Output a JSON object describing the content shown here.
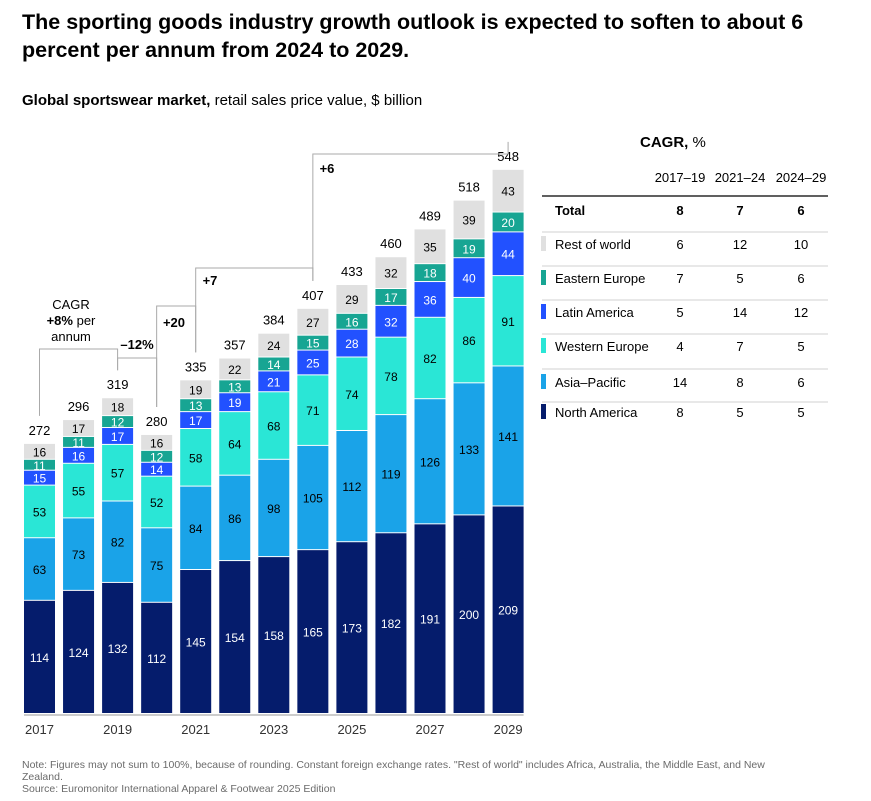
{
  "title": "The sporting goods industry growth outlook is expected to soften to about 6 percent per annum from 2024 to 2029.",
  "subtitle": {
    "bold": "Global sportswear market,",
    "rest": " retail sales price value, $ billion"
  },
  "colors": {
    "North America": "#051c6c",
    "Asia–Pacific": "#1aa3e8",
    "Western Europe": "#2ae6d6",
    "Latin America": "#2251ff",
    "Eastern Europe": "#17a593",
    "Rest of world": "#e0e0e0"
  },
  "chart_data": {
    "type": "bar",
    "stacked": true,
    "categories": [
      "2017",
      "2018",
      "2019",
      "2020",
      "2021",
      "2022",
      "2023",
      "2024",
      "2025",
      "2026",
      "2027",
      "2028",
      "2029"
    ],
    "x_tick_labels": [
      "2017",
      "2019",
      "2021",
      "2023",
      "2025",
      "2027",
      "2029"
    ],
    "totals": [
      272,
      296,
      319,
      280,
      335,
      357,
      384,
      407,
      433,
      460,
      489,
      518,
      548
    ],
    "series": [
      {
        "name": "North America",
        "values": [
          114,
          124,
          132,
          112,
          145,
          154,
          158,
          165,
          173,
          182,
          191,
          200,
          209
        ]
      },
      {
        "name": "Asia–Pacific",
        "values": [
          63,
          73,
          82,
          75,
          84,
          86,
          98,
          105,
          112,
          119,
          126,
          133,
          141
        ]
      },
      {
        "name": "Western Europe",
        "values": [
          53,
          55,
          57,
          52,
          58,
          64,
          68,
          71,
          74,
          78,
          82,
          86,
          91
        ]
      },
      {
        "name": "Latin America",
        "values": [
          15,
          16,
          17,
          14,
          17,
          19,
          21,
          25,
          28,
          32,
          36,
          40,
          44
        ]
      },
      {
        "name": "Eastern Europe",
        "values": [
          11,
          11,
          12,
          12,
          13,
          13,
          14,
          15,
          16,
          17,
          18,
          19,
          20
        ]
      },
      {
        "name": "Rest of world",
        "values": [
          16,
          17,
          18,
          16,
          19,
          22,
          24,
          27,
          29,
          32,
          35,
          39,
          43
        ]
      }
    ],
    "annotations": [
      {
        "label": "CAGR",
        "bold": "+8%",
        "rest": " per",
        "tail": "annum"
      },
      {
        "text": "–12%"
      },
      {
        "text": "+20"
      },
      {
        "text": "+7"
      },
      {
        "text": "+6"
      }
    ],
    "table": {
      "title": "CAGR,",
      "unit": " %",
      "columns": [
        "2017–19",
        "2021–24",
        "2024–29"
      ],
      "rows": [
        {
          "label": "Total",
          "values": [
            "8",
            "7",
            "6"
          ],
          "bold": true
        },
        {
          "label": "Rest of world",
          "values": [
            "6",
            "12",
            "10"
          ]
        },
        {
          "label": "Eastern Europe",
          "values": [
            "7",
            "5",
            "6"
          ]
        },
        {
          "label": "Latin America",
          "values": [
            "5",
            "14",
            "12"
          ]
        },
        {
          "label": "Western Europe",
          "values": [
            "4",
            "7",
            "5"
          ]
        },
        {
          "label": "Asia–Pacific",
          "values": [
            "14",
            "8",
            "6"
          ]
        },
        {
          "label": "North America",
          "values": [
            "8",
            "5",
            "5"
          ]
        }
      ]
    }
  },
  "notes": {
    "note": "Note: Figures may not sum to 100%, because of rounding. Constant foreign exchange rates. \"Rest of world\" includes Africa, Australia, the Middle East, and New Zealand.",
    "source": "Source: Euromonitor International Apparel & Footwear 2025 Edition"
  }
}
